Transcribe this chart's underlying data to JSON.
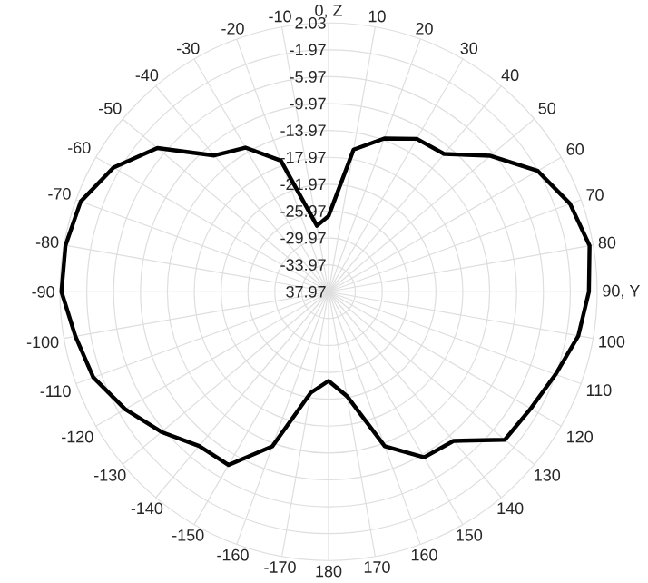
{
  "chart_data": {
    "type": "radar",
    "categories": [
      "0, Z",
      "10",
      "20",
      "30",
      "40",
      "50",
      "60",
      "70",
      "80",
      "90, Y",
      "100",
      "110",
      "120",
      "130",
      "140",
      "150",
      "160",
      "170",
      "180",
      "-170",
      "-160",
      "-150",
      "-140",
      "-130",
      "-120",
      "-110",
      "-100",
      "-90",
      "-80",
      "-70",
      "-60",
      "-50",
      "-40",
      "-30",
      "-20",
      "-10"
    ],
    "series": [
      {
        "color": "#000000",
        "values": [
          -26.7,
          -16.5,
          -13.7,
          -11.7,
          -11.2,
          -6.5,
          -2.0,
          0.3,
          1.5,
          0.8,
          -0.2,
          -2.0,
          -3.2,
          -3.7,
          -9.0,
          -9.5,
          -13.5,
          -22.2,
          -24.7,
          -22.7,
          -13.5,
          -8.2,
          -8.0,
          -5.5,
          -3.0,
          -0.7,
          0.3,
          1.8,
          1.8,
          1.3,
          -1.0,
          -4.7,
          -11.5,
          -13.2,
          -17.2,
          -28.0
        ]
      }
    ],
    "ylim": [
      -37.97,
      2.03
    ],
    "yticks": [
      2.03,
      -1.97,
      -5.97,
      -9.97,
      -13.97,
      -17.97,
      -21.97,
      -25.97,
      -29.97,
      -33.97,
      {
        "value": -37.97,
        "label": "37.97"
      }
    ],
    "grid": true
  }
}
